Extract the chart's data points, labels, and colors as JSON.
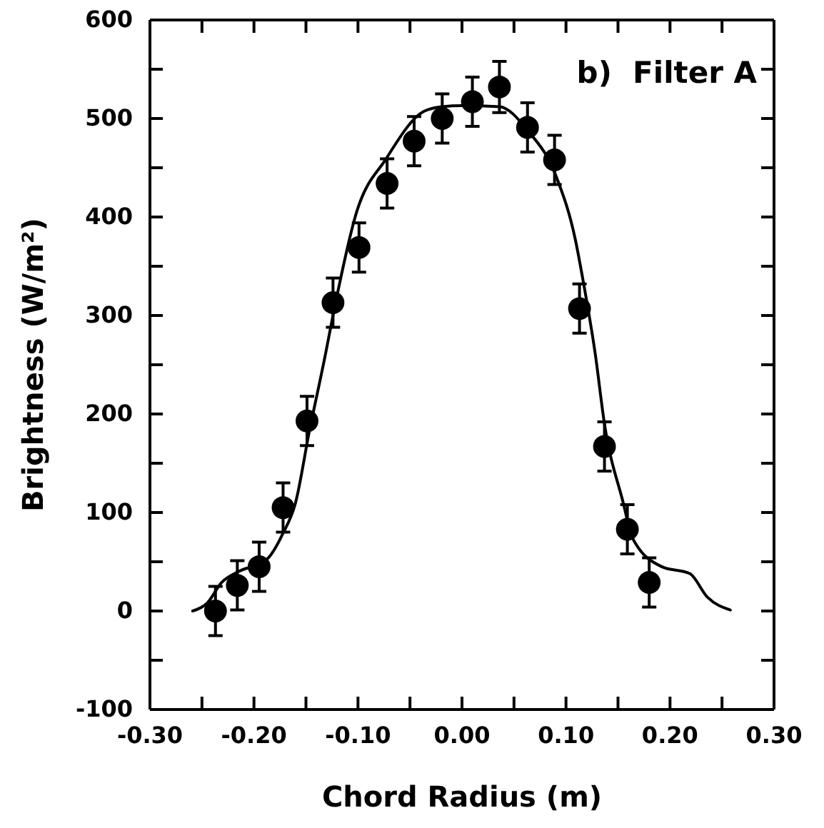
{
  "chart_data": {
    "type": "scatter",
    "xlabel": "Chord Radius (m)",
    "ylabel": "Brightness (W/m²)",
    "annotations": [
      "b)  Filter A"
    ],
    "xlim": [
      -0.3,
      0.3
    ],
    "ylim": [
      -100,
      600
    ],
    "xticks": [
      {
        "value": -0.3,
        "label": "-0.30"
      },
      {
        "value": -0.25,
        "label": null
      },
      {
        "value": -0.2,
        "label": "-0.20"
      },
      {
        "value": -0.15,
        "label": null
      },
      {
        "value": -0.1,
        "label": "-0.10"
      },
      {
        "value": -0.05,
        "label": null
      },
      {
        "value": 0,
        "label": "0.00"
      },
      {
        "value": 0.05,
        "label": null
      },
      {
        "value": 0.1,
        "label": "0.10"
      },
      {
        "value": 0.15,
        "label": null
      },
      {
        "value": 0.2,
        "label": "0.20"
      },
      {
        "value": 0.25,
        "label": null
      },
      {
        "value": 0.3,
        "label": "0.30"
      }
    ],
    "yticks": [
      -100,
      {
        "value": -50,
        "label": null
      },
      0,
      {
        "value": 50,
        "label": null
      },
      100,
      {
        "value": 150,
        "label": null
      },
      200,
      {
        "value": 250,
        "label": null
      },
      300,
      {
        "value": 350,
        "label": null
      },
      400,
      {
        "value": 450,
        "label": null
      },
      500,
      {
        "value": 550,
        "label": null
      },
      600
    ],
    "grid": false,
    "series": [
      {
        "color": "#000000",
        "marker": "circle",
        "x": [
          -0.237,
          -0.216,
          -0.195,
          -0.172,
          -0.149,
          -0.124,
          -0.099,
          -0.072,
          -0.046,
          -0.019,
          0.01,
          0.036,
          0.063,
          0.089,
          0.113,
          0.137,
          0.159,
          0.18
        ],
        "values": [
          0,
          26,
          45,
          105,
          193,
          313,
          369,
          434,
          477,
          500,
          517,
          532,
          491,
          458,
          307,
          167,
          83,
          29
        ],
        "errors": [
          25,
          25,
          25,
          25,
          25,
          25,
          25,
          25,
          25,
          25,
          25,
          26,
          25,
          25,
          25,
          25,
          25,
          25
        ]
      },
      {
        "type": "line",
        "color": "#000000",
        "marker": "none",
        "line_style": "solid",
        "x": [
          -0.259,
          -0.245,
          -0.231,
          -0.215,
          -0.188,
          -0.172,
          -0.16,
          -0.147,
          -0.131,
          -0.124,
          -0.101,
          -0.073,
          -0.037,
          -0.019,
          0.0,
          0.036,
          0.063,
          0.091,
          0.109,
          0.116,
          0.128,
          0.137,
          0.155,
          0.164,
          0.192,
          0.219,
          0.236,
          0.258
        ],
        "values": [
          0,
          8,
          29,
          40,
          52,
          79,
          110,
          181,
          262,
          300,
          406,
          459,
          507,
          512,
          513,
          512,
          488,
          440,
          377,
          338,
          262,
          190,
          110,
          74,
          45,
          38,
          14,
          1
        ]
      }
    ]
  }
}
